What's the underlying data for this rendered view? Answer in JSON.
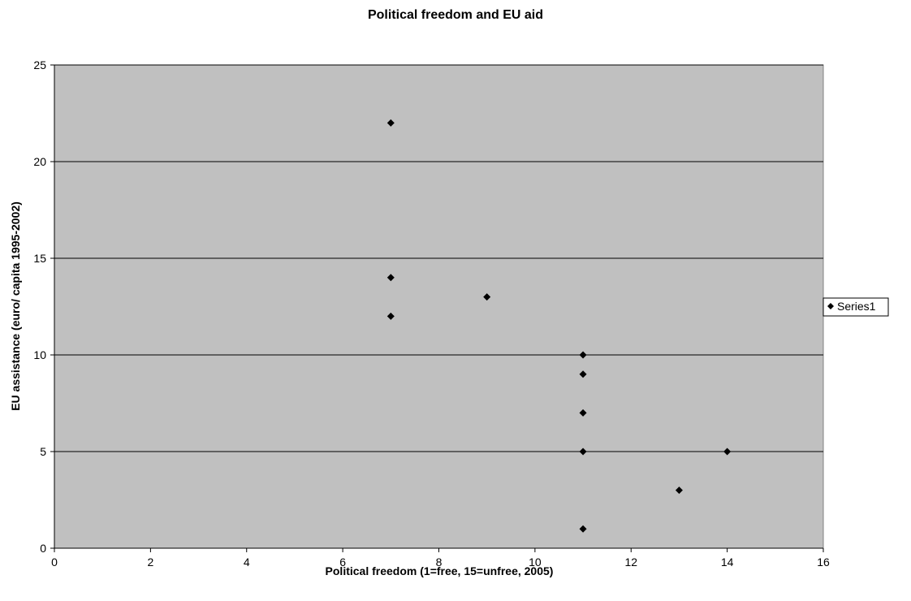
{
  "chart_data": {
    "type": "scatter",
    "title": "Political freedom and EU aid",
    "xlabel": "Political freedom (1=free, 15=unfree, 2005)",
    "ylabel": "EU assistance (euro/ capita 1995-2002)",
    "xlim": [
      0,
      16
    ],
    "ylim": [
      0,
      25
    ],
    "xticks": [
      0,
      2,
      4,
      6,
      8,
      10,
      12,
      14,
      16
    ],
    "yticks": [
      0,
      5,
      10,
      15,
      20,
      25
    ],
    "grid": "horizontal",
    "legend_position": "right",
    "plot_background": "#c0c0c0",
    "gridline_color": "#000000",
    "marker": "diamond",
    "series": [
      {
        "name": "Series1",
        "color": "#000000",
        "points": [
          {
            "x": 7,
            "y": 22
          },
          {
            "x": 7,
            "y": 14
          },
          {
            "x": 7,
            "y": 12
          },
          {
            "x": 9,
            "y": 13
          },
          {
            "x": 11,
            "y": 10
          },
          {
            "x": 11,
            "y": 9
          },
          {
            "x": 11,
            "y": 7
          },
          {
            "x": 11,
            "y": 5
          },
          {
            "x": 11,
            "y": 1
          },
          {
            "x": 13,
            "y": 3
          },
          {
            "x": 14,
            "y": 5
          }
        ]
      }
    ]
  }
}
